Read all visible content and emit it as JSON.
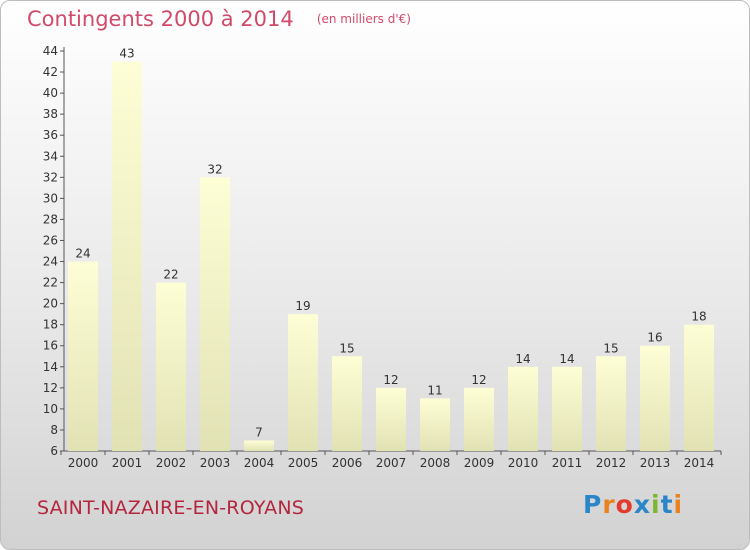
{
  "title": "Contingents 2000 à 2014",
  "unit": "(en milliers d'€)",
  "commune": "SAINT-NAZAIRE-EN-ROYANS",
  "logo": {
    "text": "Proxiti",
    "letter_colors": [
      "#2a86c8",
      "#e8821e",
      "#e23b2e",
      "#2a86c8",
      "#7cb82f",
      "#2a86c8",
      "#e8821e"
    ]
  },
  "colors": {
    "title": "#d14a6a",
    "commune": "#b3263e",
    "bar_top": "#fefed6",
    "bar_bottom": "#e1e2b4"
  },
  "chart_data": {
    "type": "bar",
    "title": "Contingents 2000 à 2014",
    "categories": [
      "2000",
      "2001",
      "2002",
      "2003",
      "2004",
      "2005",
      "2006",
      "2007",
      "2008",
      "2009",
      "2010",
      "2011",
      "2012",
      "2013",
      "2014"
    ],
    "values": [
      24,
      43,
      22,
      32,
      7,
      19,
      15,
      12,
      11,
      12,
      14,
      14,
      15,
      16,
      18
    ],
    "ylim": [
      6,
      44
    ],
    "yticks": [
      6,
      8,
      10,
      12,
      14,
      16,
      18,
      20,
      22,
      24,
      26,
      28,
      30,
      32,
      34,
      36,
      38,
      40,
      42,
      44
    ],
    "xlabel": "",
    "ylabel": "",
    "grid": false,
    "legend": "none"
  }
}
